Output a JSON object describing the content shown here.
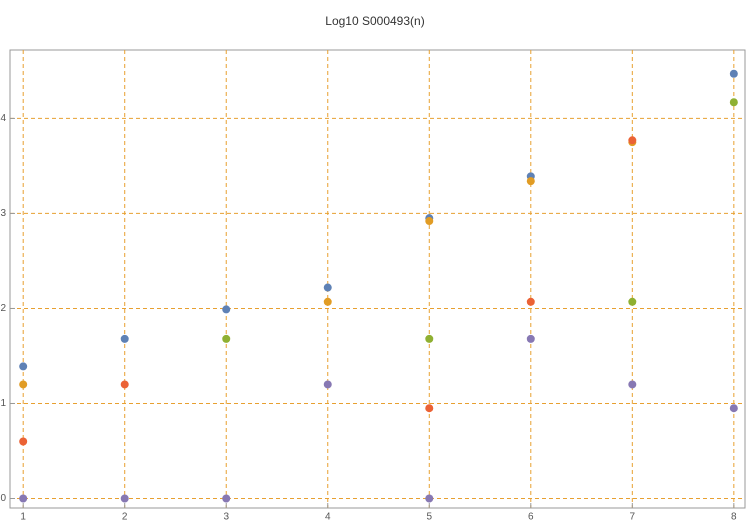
{
  "chart_data": {
    "type": "scatter",
    "title": "Log10 S000493(n)",
    "x": [
      1,
      2,
      3,
      4,
      5,
      6,
      7,
      8
    ],
    "series": [
      {
        "color": "#5e81b5",
        "values": [
          1.39,
          1.68,
          1.99,
          2.22,
          2.95,
          3.39,
          null,
          4.47
        ]
      },
      {
        "color": "#e19c24",
        "values": [
          1.2,
          null,
          null,
          2.07,
          2.92,
          3.34,
          3.75,
          null
        ]
      },
      {
        "color": "#eb6235",
        "values": [
          0.6,
          1.2,
          null,
          null,
          0.95,
          2.07,
          3.77,
          null
        ]
      },
      {
        "color": "#8fb032",
        "values": [
          null,
          null,
          1.68,
          null,
          1.68,
          null,
          2.07,
          4.17
        ]
      },
      {
        "color": "#8778b3",
        "values": [
          0,
          0,
          0,
          1.2,
          0,
          1.68,
          1.2,
          0.95
        ]
      }
    ],
    "xlim": [
      0.87,
      8.11
    ],
    "ylim": [
      -0.1,
      4.72
    ],
    "xticks": [
      1,
      2,
      3,
      4,
      5,
      6,
      7,
      8
    ],
    "yticks": [
      0,
      1,
      2,
      3,
      4
    ],
    "grid": true
  }
}
